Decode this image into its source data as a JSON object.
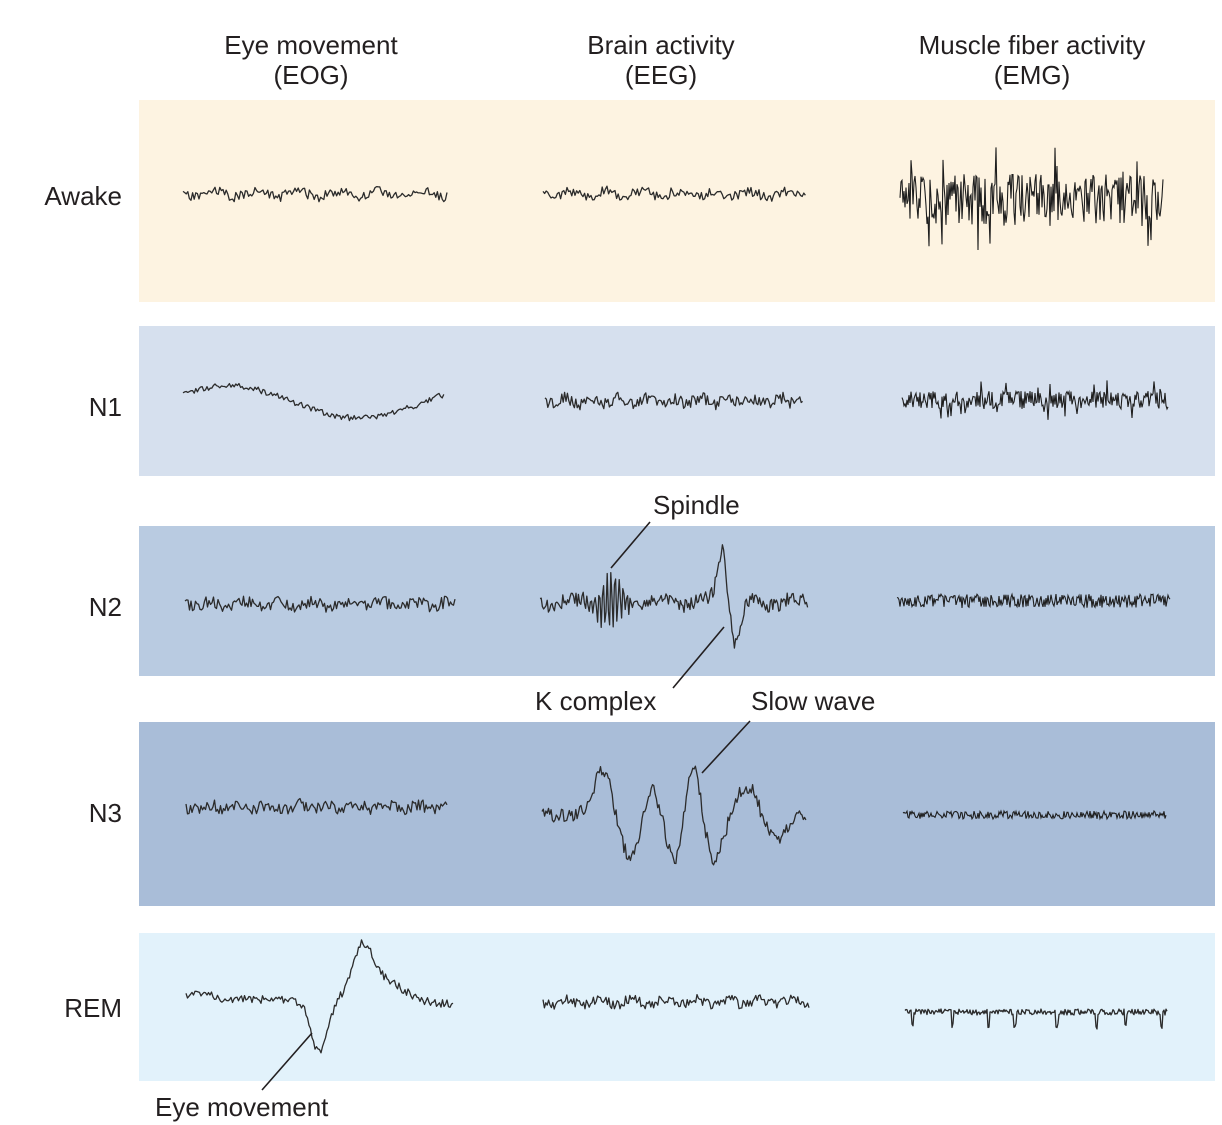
{
  "columns": [
    {
      "line1": "Eye movement",
      "line2": "(EOG)"
    },
    {
      "line1": "Brain activity",
      "line2": "(EEG)"
    },
    {
      "line1": "Muscle fiber activity",
      "line2": "(EMG)"
    }
  ],
  "rows": [
    {
      "label": "Awake",
      "color": "#fdf3e1"
    },
    {
      "label": "N1",
      "color": "#d6e0ee"
    },
    {
      "label": "N2",
      "color": "#b9cbe1"
    },
    {
      "label": "N3",
      "color": "#a9bdd8"
    },
    {
      "label": "REM",
      "color": "#e2f2fb"
    }
  ],
  "annotations": {
    "spindle": "Spindle",
    "k_complex": "K complex",
    "slow_wave": "Slow wave",
    "eye_movement": "Eye movement"
  }
}
